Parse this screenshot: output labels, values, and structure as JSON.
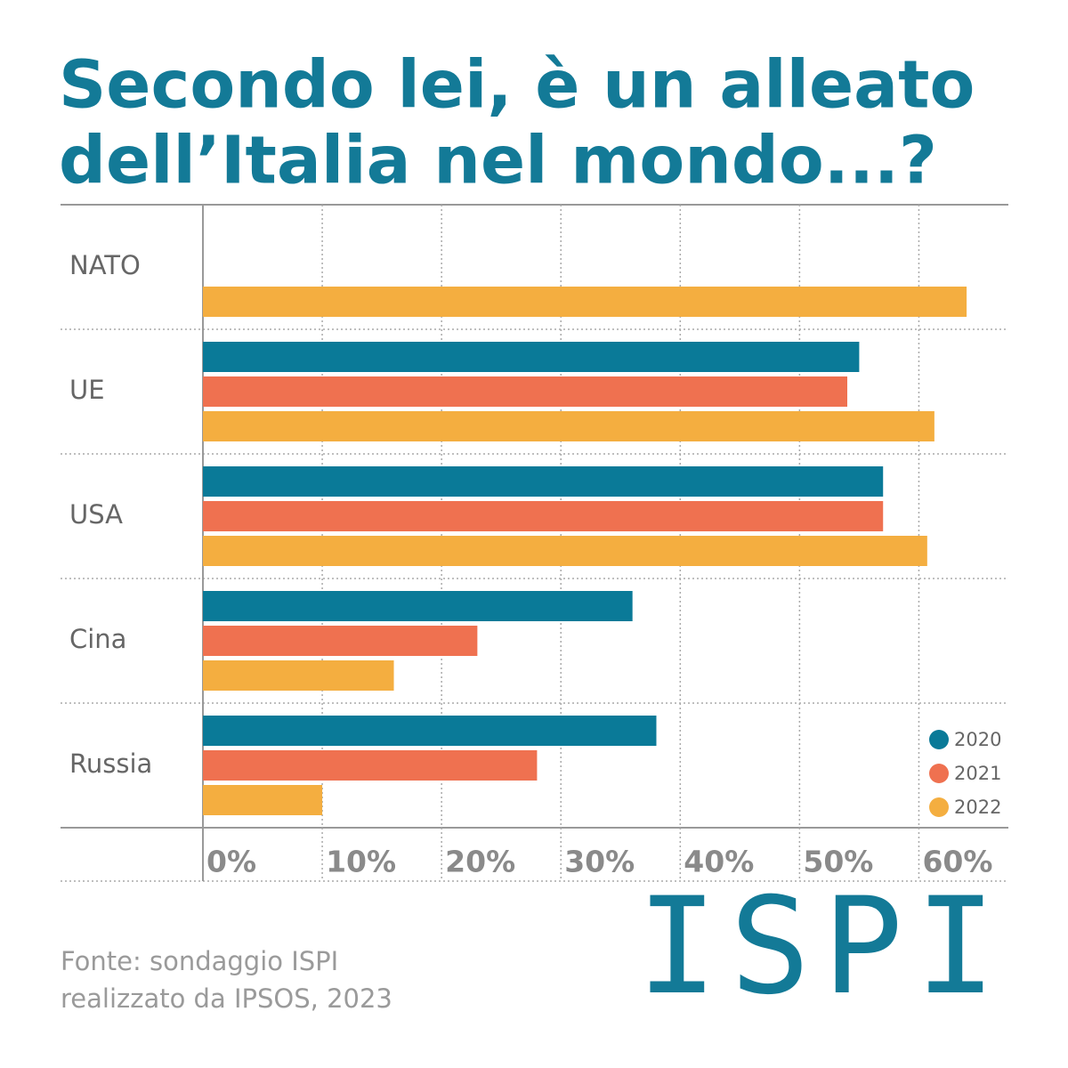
{
  "chart_data": {
    "type": "hbar",
    "title": [
      "Secondo lei, è un alleato",
      "dell’Italia nel mondo...?"
    ],
    "categories": [
      "NATO",
      "UE",
      "USA",
      "Cina",
      "Russia"
    ],
    "series": [
      {
        "name": "2020",
        "color": "#0a7a98",
        "values": [
          null,
          55,
          57,
          36,
          38
        ]
      },
      {
        "name": "2021",
        "color": "#ef7150",
        "values": [
          null,
          54,
          57,
          23,
          28
        ]
      },
      {
        "name": "2022",
        "color": "#f4ae40",
        "values": [
          64,
          61.3,
          60.7,
          16,
          10
        ]
      }
    ],
    "xlim": [
      0,
      67.5
    ],
    "xticks": [
      {
        "value": 0,
        "label": "0%"
      },
      {
        "value": 10,
        "label": "10%"
      },
      {
        "value": 20,
        "label": "20%"
      },
      {
        "value": 30,
        "label": "30%"
      },
      {
        "value": 40,
        "label": "40%"
      },
      {
        "value": 50,
        "label": "50%"
      },
      {
        "value": 60,
        "label": "60%"
      }
    ],
    "grid": true,
    "legend": "bottom-right",
    "source": [
      "Fonte: sondaggio ISPI",
      "realizzato da IPSOS, 2023"
    ],
    "logo": "ISPI"
  }
}
